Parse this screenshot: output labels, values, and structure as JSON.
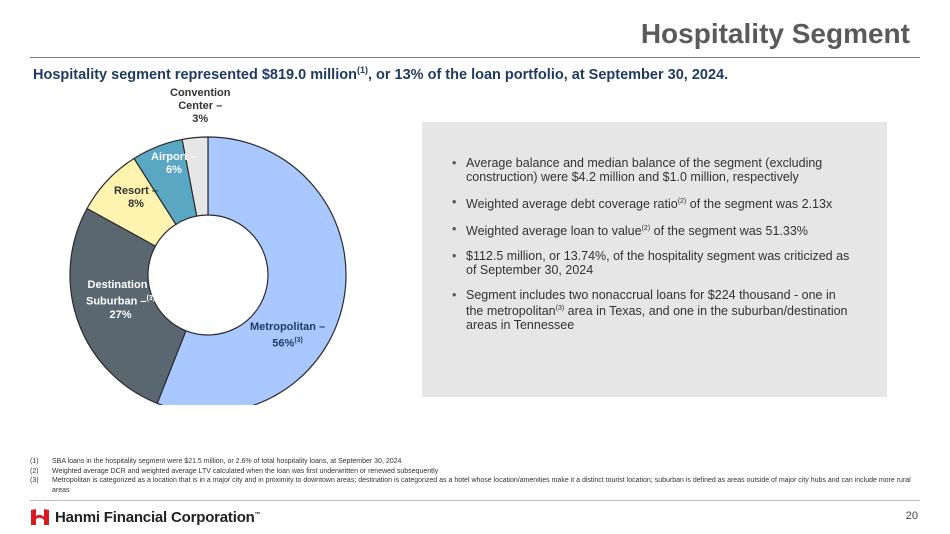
{
  "header": {
    "title": "Hospitality Segment"
  },
  "subtitle": {
    "text_a": "Hospitality segment represented $819.0 million",
    "sup": "(1)",
    "text_b": ", or 13% of the loan portfolio, at September 30, 2024."
  },
  "chart_data": {
    "type": "pie",
    "categories": [
      "Metropolitan",
      "Destination / Suburban",
      "Resort",
      "Airport",
      "Convention Center"
    ],
    "values": [
      56,
      27,
      8,
      6,
      3
    ],
    "unit": "%",
    "colors": [
      "#a9c8ff",
      "#5b6770",
      "#fff3b0",
      "#5aa7c4",
      "#e6e6e6"
    ],
    "labels": {
      "convention": [
        "Convention",
        "Center –",
        "3%"
      ],
      "airport": [
        "Airport –",
        "6%"
      ],
      "resort": [
        "Resort –",
        "8%"
      ],
      "destination": [
        "Destination /",
        "Suburban –",
        "27%"
      ],
      "destination_sup": "(3)",
      "metropolitan": [
        "Metropolitan –",
        "56%"
      ],
      "metropolitan_sup": "(3)"
    }
  },
  "bullets": [
    {
      "a": "Average balance and median balance of the segment (excluding construction) were $4.2 million and $1.0 million, respectively",
      "sup": "",
      "b": ""
    },
    {
      "a": "Weighted average debt coverage ratio",
      "sup": "(2)",
      "b": " of the segment was 2.13x"
    },
    {
      "a": "Weighted average loan to value",
      "sup": "(2)",
      "b": " of the segment was 51.33%"
    },
    {
      "a": "$112.5 million, or 13.74%, of the hospitality segment was criticized as of September 30, 2024",
      "sup": "",
      "b": ""
    },
    {
      "a": "Segment includes two nonaccrual loans for $224 thousand - one in the metropolitan",
      "sup": "(3)",
      "b": " area in Texas, and one in the suburban/destination areas in Tennessee"
    }
  ],
  "footnotes": [
    {
      "n": "(1)",
      "text": "SBA loans in the hospitality segment were $21.5 million, or 2.6% of total hospitality loans, at September 30, 2024"
    },
    {
      "n": "(2)",
      "text": "Weighted average DCR and weighted average LTV calculated when the loan was first underwritten or renewed subsequently"
    },
    {
      "n": "(3)",
      "text": "Metropolitan is categorized as a location that is in a major city and in proximity to downtown areas; destination is categorized as a hotel whose location/amenities make it a distinct tourist location; suburban is defined as areas outside of major city hubs and can include more rural areas"
    }
  ],
  "footer": {
    "logo_text": "Hanmi Financial Corporation",
    "logo_mark": "™",
    "page": "20",
    "logo_color": "#d71920"
  }
}
